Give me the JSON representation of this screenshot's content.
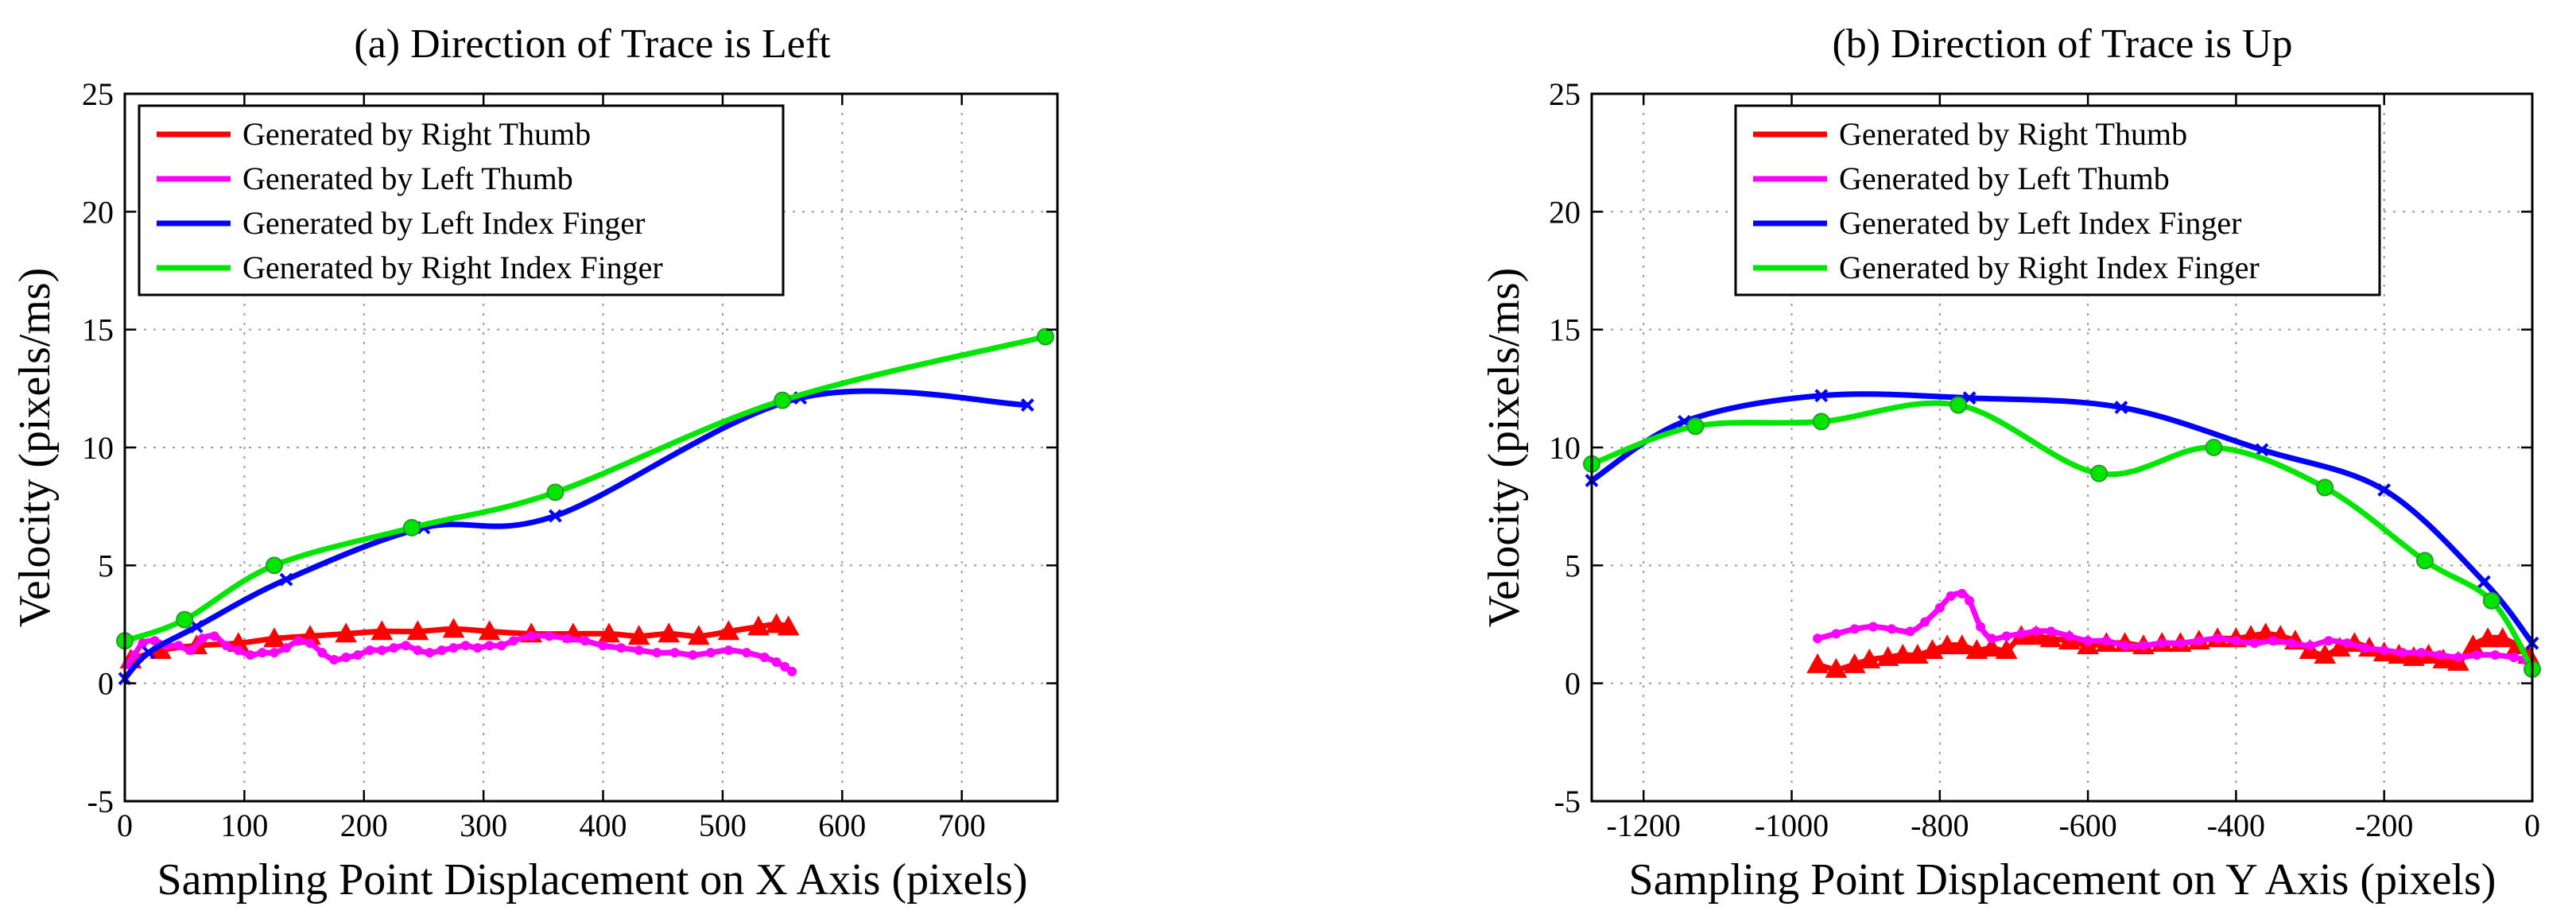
{
  "chart_data": [
    {
      "type": "line",
      "title": "(a) Direction of Trace is Left",
      "xlabel": "Sampling Point Displacement on X Axis (pixels)",
      "ylabel": "Velocity (pixels/ms)",
      "xlim": [
        0,
        780
      ],
      "ylim": [
        -5,
        25
      ],
      "xticks": [
        0,
        100,
        200,
        300,
        400,
        500,
        600,
        700
      ],
      "yticks": [
        -5,
        0,
        5,
        10,
        15,
        20,
        25
      ],
      "grid": true,
      "legend_position": "top-left",
      "series": [
        {
          "name": "Generated by Right Thumb",
          "color": "#ff0000",
          "marker": "triangle",
          "x": [
            5,
            30,
            60,
            95,
            125,
            155,
            185,
            215,
            245,
            275,
            305,
            340,
            375,
            405,
            430,
            455,
            480,
            505,
            530,
            545,
            555
          ],
          "y": [
            1.0,
            1.4,
            1.6,
            1.7,
            1.9,
            2.0,
            2.1,
            2.2,
            2.2,
            2.3,
            2.2,
            2.1,
            2.1,
            2.1,
            2.0,
            2.1,
            2.0,
            2.2,
            2.4,
            2.5,
            2.4
          ]
        },
        {
          "name": "Generated by Left Thumb",
          "color": "#ff00ff",
          "marker": "dot",
          "x": [
            2,
            8,
            15,
            25,
            35,
            45,
            55,
            65,
            75,
            85,
            95,
            105,
            115,
            125,
            135,
            145,
            155,
            165,
            175,
            185,
            195,
            205,
            215,
            225,
            235,
            245,
            255,
            265,
            275,
            285,
            295,
            305,
            315,
            325,
            340,
            355,
            370,
            385,
            400,
            415,
            430,
            445,
            460,
            475,
            490,
            505,
            520,
            535,
            545,
            552,
            558
          ],
          "y": [
            0.8,
            1.2,
            1.7,
            1.8,
            1.6,
            1.6,
            1.4,
            1.9,
            2.0,
            1.6,
            1.4,
            1.2,
            1.3,
            1.3,
            1.5,
            1.8,
            1.7,
            1.3,
            1.0,
            1.1,
            1.2,
            1.4,
            1.4,
            1.5,
            1.6,
            1.4,
            1.3,
            1.4,
            1.5,
            1.6,
            1.5,
            1.6,
            1.6,
            1.8,
            2.0,
            2.0,
            1.9,
            1.8,
            1.6,
            1.5,
            1.4,
            1.3,
            1.3,
            1.2,
            1.3,
            1.4,
            1.3,
            1.1,
            0.9,
            0.7,
            0.5
          ]
        },
        {
          "name": "Generated by Left Index Finger",
          "color": "#0000ff",
          "marker": "x",
          "x": [
            0,
            20,
            60,
            135,
            250,
            360,
            565,
            755
          ],
          "y": [
            0.2,
            1.3,
            2.4,
            4.4,
            6.6,
            7.1,
            12.1,
            11.8
          ]
        },
        {
          "name": "Generated by Right Index Finger",
          "color": "#00e600",
          "marker": "circle",
          "x": [
            0,
            50,
            125,
            240,
            360,
            550,
            770
          ],
          "y": [
            1.8,
            2.7,
            5.0,
            6.6,
            8.1,
            12.0,
            14.7
          ]
        }
      ]
    },
    {
      "type": "line",
      "title": "(b) Direction of Trace is Up",
      "xlabel": "Sampling Point Displacement on Y Axis (pixels)",
      "ylabel": "Velocity (pixels/ms)",
      "xlim": [
        -1270,
        0
      ],
      "ylim": [
        -5,
        25
      ],
      "xticks": [
        -1200,
        -1000,
        -800,
        -600,
        -400,
        -200,
        0
      ],
      "yticks": [
        -5,
        0,
        5,
        10,
        15,
        20,
        25
      ],
      "grid": true,
      "legend_position": "top-center",
      "series": [
        {
          "name": "Generated by Right Thumb",
          "color": "#ff0000",
          "marker": "triangle",
          "x": [
            -965,
            -940,
            -915,
            -895,
            -870,
            -850,
            -830,
            -810,
            -790,
            -770,
            -750,
            -730,
            -710,
            -690,
            -670,
            -650,
            -625,
            -600,
            -575,
            -550,
            -525,
            -500,
            -475,
            -450,
            -425,
            -400,
            -380,
            -360,
            -340,
            -320,
            -300,
            -280,
            -260,
            -240,
            -220,
            -200,
            -180,
            -160,
            -140,
            -120,
            -100,
            -80,
            -60,
            -40,
            -20,
            -5
          ],
          "y": [
            0.8,
            0.6,
            0.8,
            1.0,
            1.1,
            1.2,
            1.2,
            1.4,
            1.6,
            1.6,
            1.4,
            1.5,
            1.4,
            2.0,
            2.0,
            1.9,
            1.8,
            1.6,
            1.7,
            1.7,
            1.6,
            1.7,
            1.7,
            1.8,
            1.9,
            1.9,
            2.0,
            2.1,
            2.0,
            1.8,
            1.4,
            1.2,
            1.5,
            1.7,
            1.5,
            1.3,
            1.2,
            1.1,
            1.2,
            1.0,
            0.9,
            1.6,
            1.9,
            1.9,
            1.6,
            1.2
          ]
        },
        {
          "name": "Generated by Left Thumb",
          "color": "#ff00ff",
          "marker": "dot",
          "x": [
            -965,
            -940,
            -915,
            -890,
            -865,
            -840,
            -820,
            -800,
            -785,
            -770,
            -760,
            -745,
            -730,
            -710,
            -690,
            -670,
            -650,
            -625,
            -600,
            -575,
            -550,
            -525,
            -500,
            -475,
            -450,
            -425,
            -400,
            -375,
            -350,
            -325,
            -300,
            -275,
            -250,
            -225,
            -200,
            -175,
            -150,
            -125,
            -100,
            -75,
            -50,
            -25,
            -10
          ],
          "y": [
            1.9,
            2.1,
            2.3,
            2.4,
            2.3,
            2.2,
            2.6,
            3.2,
            3.7,
            3.8,
            3.5,
            2.4,
            1.9,
            2.0,
            2.1,
            2.2,
            2.2,
            2.0,
            1.8,
            1.8,
            1.6,
            1.6,
            1.7,
            1.7,
            1.8,
            1.9,
            1.8,
            1.7,
            1.8,
            1.7,
            1.6,
            1.8,
            1.7,
            1.5,
            1.4,
            1.3,
            1.3,
            1.2,
            1.1,
            1.2,
            1.2,
            1.1,
            1.0
          ]
        },
        {
          "name": "Generated by Left Index Finger",
          "color": "#0000ff",
          "marker": "x",
          "x": [
            -1270,
            -1145,
            -960,
            -760,
            -555,
            -365,
            -200,
            -65,
            0
          ],
          "y": [
            8.6,
            11.1,
            12.2,
            12.1,
            11.7,
            9.9,
            8.2,
            4.3,
            1.7
          ]
        },
        {
          "name": "Generated by Right Index Finger",
          "color": "#00e600",
          "marker": "circle",
          "x": [
            -1270,
            -1130,
            -960,
            -775,
            -585,
            -430,
            -280,
            -145,
            -55,
            0
          ],
          "y": [
            9.3,
            10.9,
            11.1,
            11.8,
            8.9,
            10.0,
            8.3,
            5.2,
            3.5,
            0.6
          ]
        }
      ]
    }
  ]
}
